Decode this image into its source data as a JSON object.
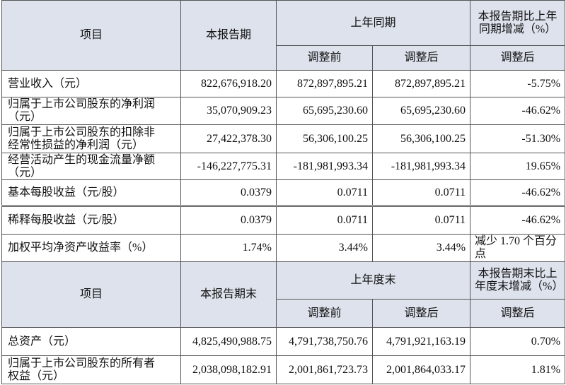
{
  "table_1": {
    "header": {
      "item": "项目",
      "current": "本报告期",
      "prior": "上年同期",
      "before": "调整前",
      "after": "调整后",
      "change": "本报告期比上年同期增减（%）",
      "change_sub": "调整后"
    },
    "rows": [
      [
        "营业收入（元）",
        "822,676,918.20",
        "872,897,895.21",
        "872,897,895.21",
        "-5.75%"
      ],
      [
        "归属于上市公司股东的净利润（元）",
        "35,070,909.23",
        "65,695,230.60",
        "65,695,230.60",
        "-46.62%"
      ],
      [
        "归属于上市公司股东的扣除非经常性损益的净利润（元）",
        "27,422,378.30",
        "56,306,100.25",
        "56,306,100.25",
        "-51.30%"
      ],
      [
        "经营活动产生的现金流量净额（元）",
        "-146,227,775.31",
        "-181,981,993.34",
        "-181,981,993.34",
        "19.65%"
      ],
      [
        "基本每股收益（元/股）",
        "0.0379",
        "0.0711",
        "0.0711",
        "-46.62%"
      ],
      [
        "稀释每股收益（元/股）",
        "0.0379",
        "0.0711",
        "0.0711",
        "-46.62%"
      ],
      [
        "加权平均净资产收益率（%）",
        "1.74%",
        "3.44%",
        "3.44%",
        "减少 1.70 个百分点"
      ]
    ]
  },
  "table_2": {
    "header": {
      "item": "项目",
      "current": "本报告期末",
      "prior": "上年度末",
      "before": "调整前",
      "after": "调整后",
      "change": "本报告期末比上年度末增减（%）",
      "change_sub": "调整后"
    },
    "rows": [
      [
        "总资产（元）",
        "4,825,490,988.75",
        "4,791,738,750.76",
        "4,791,921,163.19",
        "0.70%"
      ],
      [
        "归属于上市公司股东的所有者权益（元）",
        "2,038,098,182.91",
        "2,001,861,723.73",
        "2,001,864,033.17",
        "1.81%"
      ]
    ]
  }
}
